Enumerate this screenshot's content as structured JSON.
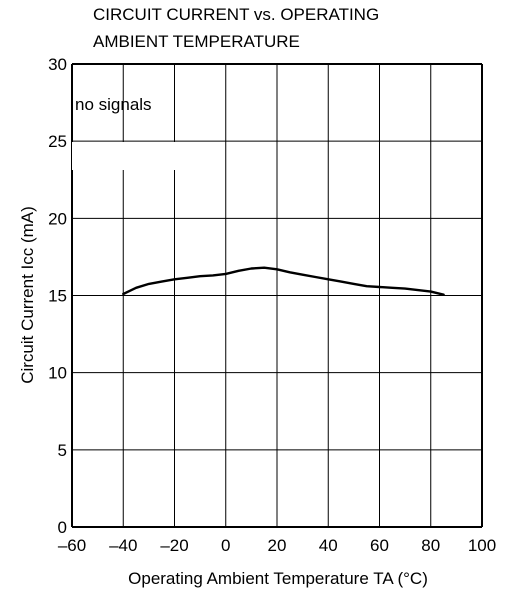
{
  "chart_data": {
    "type": "line",
    "title_lines": [
      "CIRCUIT CURRENT vs. OPERATING",
      "AMBIENT TEMPERATURE"
    ],
    "ylabel": "Circuit Current  Icc (mA)",
    "xlabel": "Operating Ambient Temperature  TA (°C)",
    "annotation": "no signals",
    "xlim": [
      -60,
      100
    ],
    "ylim": [
      0,
      30
    ],
    "x_ticks": [
      -60,
      -40,
      -20,
      0,
      20,
      40,
      60,
      80,
      100
    ],
    "y_ticks": [
      0,
      5,
      10,
      15,
      20,
      25,
      30
    ],
    "x_tick_labels": [
      "–60",
      "–40",
      "–20",
      "0",
      "20",
      "40",
      "60",
      "80",
      "100"
    ],
    "y_tick_labels": [
      "0",
      "5",
      "10",
      "15",
      "20",
      "25",
      "30"
    ],
    "grid": true,
    "series": [
      {
        "x": [
          -40,
          -35,
          -30,
          -25,
          -20,
          -15,
          -10,
          -5,
          0,
          5,
          10,
          15,
          20,
          25,
          30,
          35,
          40,
          45,
          50,
          55,
          60,
          65,
          70,
          75,
          80,
          85
        ],
        "y": [
          15.1,
          15.5,
          15.75,
          15.9,
          16.05,
          16.15,
          16.25,
          16.3,
          16.4,
          16.6,
          16.75,
          16.8,
          16.7,
          16.5,
          16.35,
          16.2,
          16.05,
          15.9,
          15.75,
          15.6,
          15.55,
          15.5,
          15.45,
          15.35,
          15.25,
          15.05
        ]
      }
    ]
  }
}
